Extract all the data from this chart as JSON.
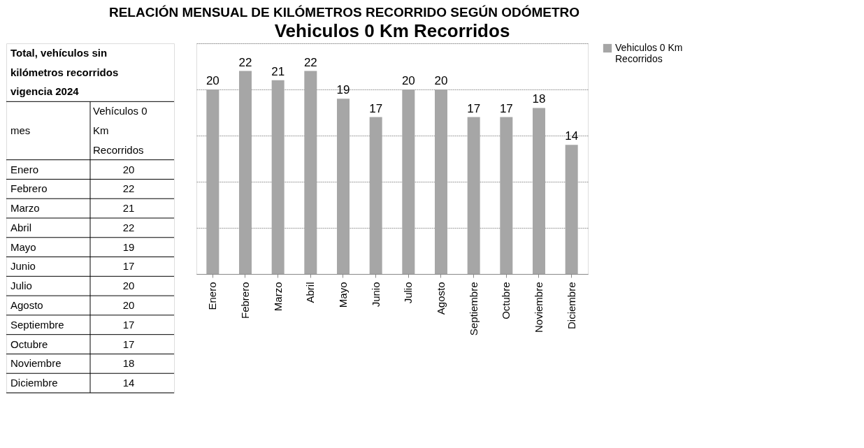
{
  "chart_data": {
    "type": "bar",
    "title": "RELACIÓN MENSUAL DE KILÓMETROS RECORRIDO SEGÚN ODÓMETRO",
    "subtitle": "Vehiculos 0 Km Recorridos",
    "categories": [
      "Enero",
      "Febrero",
      "Marzo",
      "Abril",
      "Mayo",
      "Junio",
      "Julio",
      "Agosto",
      "Septiembre",
      "Octubre",
      "Noviembre",
      "Diciembre"
    ],
    "series": [
      {
        "name": "Vehiculos 0 Km Recorridos",
        "color": "#a6a6a6",
        "values": [
          20,
          22,
          21,
          22,
          19,
          17,
          20,
          20,
          17,
          17,
          18,
          14
        ],
        "value_labels": [
          "20",
          "22",
          "21",
          "22",
          "19",
          "17",
          "20",
          "20",
          "17",
          "17",
          "18",
          "14"
        ]
      }
    ],
    "ylim": [
      0,
      25
    ],
    "yticks": [
      {
        "value": 0,
        "label": null
      },
      {
        "value": 5,
        "label": null
      },
      {
        "value": 10,
        "label": null
      },
      {
        "value": 15,
        "label": null
      },
      {
        "value": 20,
        "label": null
      },
      {
        "value": 25,
        "label": null
      }
    ],
    "tick_labels": "x",
    "grid": "y",
    "legend": "right",
    "annotations": [
      "Total, vehículos sin kilómetros recorridos vigencia 2024",
      "mes",
      "Vehículos 0 Km Recorridos"
    ]
  }
}
